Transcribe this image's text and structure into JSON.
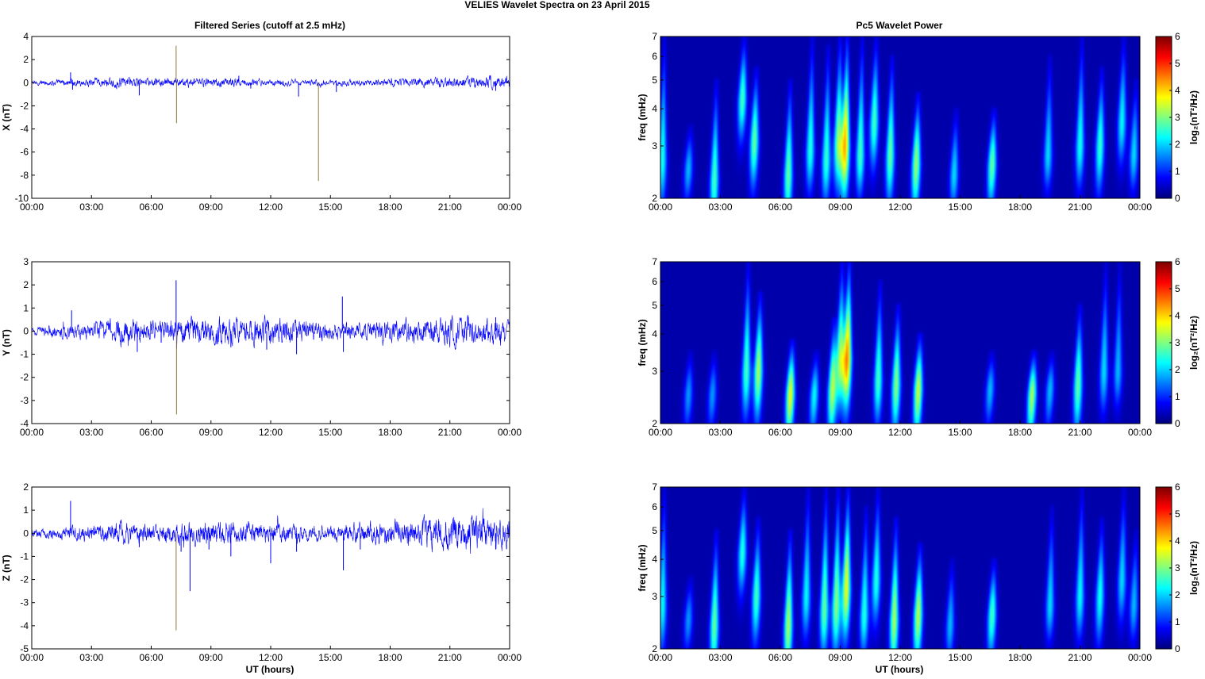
{
  "figure": {
    "title": "VELIES Wavelet Spectra on 23 April     2015",
    "left_column_title": "Filtered Series (cutoff at 2.5 mHz)",
    "right_column_title": "Pc5 Wavelet Power",
    "xlabel": "UT (hours)"
  },
  "chart_data": [
    {
      "type": "line",
      "id": "x",
      "ylabel": "X (nT)",
      "ylim": [
        -10,
        4
      ],
      "yticks": [
        -10,
        -8,
        -6,
        -4,
        -2,
        0,
        2,
        4
      ],
      "xlim_hours": [
        0,
        24
      ],
      "xticks": [
        "00:00",
        "03:00",
        "06:00",
        "09:00",
        "12:00",
        "15:00",
        "18:00",
        "21:00",
        "00:00"
      ],
      "line_color": "#0000ff",
      "noise_amplitude": [
        [
          0,
          0.1
        ],
        [
          1.5,
          0.15
        ],
        [
          3,
          0.2
        ],
        [
          4.5,
          0.25
        ],
        [
          6,
          0.2
        ],
        [
          7.5,
          0.2
        ],
        [
          9,
          0.25
        ],
        [
          10.5,
          0.2
        ],
        [
          12,
          0.15
        ],
        [
          13.5,
          0.15
        ],
        [
          15,
          0.15
        ],
        [
          17,
          0.15
        ],
        [
          19,
          0.2
        ],
        [
          21,
          0.25
        ],
        [
          24,
          0.3
        ]
      ],
      "spikes": [
        [
          1.95,
          0.9
        ],
        [
          2.05,
          -0.6
        ],
        [
          5.4,
          -1.1
        ],
        [
          7.25,
          3.2
        ],
        [
          7.27,
          -3.5
        ],
        [
          10.4,
          0.6
        ],
        [
          11.0,
          -0.5
        ],
        [
          13.4,
          -1.2
        ],
        [
          14.4,
          -8.5
        ],
        [
          15.3,
          -0.8
        ],
        [
          23.3,
          -0.7
        ]
      ]
    },
    {
      "type": "line",
      "id": "y",
      "ylabel": "Y (nT)",
      "ylim": [
        -4,
        3
      ],
      "yticks": [
        -4,
        -3,
        -2,
        -1,
        0,
        1,
        2,
        3
      ],
      "xlim_hours": [
        0,
        24
      ],
      "xticks": [
        "00:00",
        "03:00",
        "06:00",
        "09:00",
        "12:00",
        "15:00",
        "18:00",
        "21:00",
        "00:00"
      ],
      "line_color": "#0000ff",
      "noise_amplitude": [
        [
          0,
          0.1
        ],
        [
          1.5,
          0.15
        ],
        [
          3,
          0.2
        ],
        [
          4.5,
          0.3
        ],
        [
          6,
          0.25
        ],
        [
          7.5,
          0.3
        ],
        [
          9,
          0.35
        ],
        [
          10.5,
          0.3
        ],
        [
          12,
          0.3
        ],
        [
          13.5,
          0.3
        ],
        [
          15,
          0.2
        ],
        [
          17,
          0.2
        ],
        [
          19,
          0.3
        ],
        [
          21,
          0.35
        ],
        [
          24,
          0.3
        ]
      ],
      "spikes": [
        [
          2.0,
          0.9
        ],
        [
          5.3,
          -0.9
        ],
        [
          6.5,
          -0.5
        ],
        [
          7.25,
          2.2
        ],
        [
          7.27,
          -3.6
        ],
        [
          10.0,
          -0.7
        ],
        [
          11.8,
          -0.8
        ],
        [
          13.3,
          -1.0
        ],
        [
          15.6,
          1.5
        ],
        [
          15.65,
          -0.9
        ],
        [
          23.3,
          0.6
        ]
      ]
    },
    {
      "type": "line",
      "id": "z",
      "ylabel": "Z (nT)",
      "ylim": [
        -5,
        2
      ],
      "yticks": [
        -5,
        -4,
        -3,
        -2,
        -1,
        0,
        1,
        2
      ],
      "xlim_hours": [
        0,
        24
      ],
      "xticks": [
        "00:00",
        "03:00",
        "06:00",
        "09:00",
        "12:00",
        "15:00",
        "18:00",
        "21:00",
        "00:00"
      ],
      "line_color": "#0000ff",
      "noise_amplitude": [
        [
          0,
          0.1
        ],
        [
          1.5,
          0.15
        ],
        [
          3,
          0.2
        ],
        [
          4.5,
          0.25
        ],
        [
          6,
          0.2
        ],
        [
          7.5,
          0.25
        ],
        [
          9,
          0.3
        ],
        [
          10.5,
          0.25
        ],
        [
          12,
          0.25
        ],
        [
          13.5,
          0.2
        ],
        [
          15,
          0.2
        ],
        [
          17,
          0.25
        ],
        [
          19,
          0.3
        ],
        [
          20.5,
          0.4
        ],
        [
          22,
          0.4
        ],
        [
          24,
          0.35
        ]
      ],
      "spikes": [
        [
          1.95,
          1.4
        ],
        [
          5.4,
          -0.6
        ],
        [
          7.25,
          -4.2
        ],
        [
          7.5,
          -0.8
        ],
        [
          7.95,
          -2.5
        ],
        [
          8.9,
          -0.7
        ],
        [
          10.0,
          -1.0
        ],
        [
          12.0,
          -1.3
        ],
        [
          13.3,
          -0.8
        ],
        [
          15.65,
          -1.6
        ],
        [
          16.5,
          -0.7
        ],
        [
          23.3,
          -0.7
        ]
      ]
    },
    {
      "type": "heatmap",
      "id": "x-power",
      "ylabel": "freq (mHz)",
      "yscale": "log",
      "ylim": [
        2,
        7
      ],
      "yticks": [
        2,
        3,
        4,
        5,
        6,
        7
      ],
      "xlim_hours": [
        0,
        24
      ],
      "xticks": [
        "00:00",
        "03:00",
        "06:00",
        "09:00",
        "12:00",
        "15:00",
        "18:00",
        "21:00",
        "00:00"
      ],
      "colorbar_label": "log₂(nT²/Hz)",
      "clim": [
        0,
        6
      ],
      "colorbar_ticks": [
        0,
        1,
        2,
        3,
        4,
        5,
        6
      ],
      "colormap": "jet",
      "blobs": [
        [
          0.1,
          2.7,
          1.2,
          7,
          2.1
        ],
        [
          1.4,
          2.5,
          0.7,
          3.5,
          1.6
        ],
        [
          2.7,
          2.3,
          1.4,
          5,
          2.4
        ],
        [
          4.1,
          4.3,
          1.0,
          7,
          2.4
        ],
        [
          4.7,
          3.1,
          1.2,
          5.5,
          2.6
        ],
        [
          6.4,
          2.4,
          1.3,
          5,
          2.6
        ],
        [
          7.5,
          2.9,
          1.0,
          7,
          2.2
        ],
        [
          8.3,
          2.7,
          1.1,
          6.5,
          2.3
        ],
        [
          8.9,
          3.1,
          1.2,
          7,
          2.8
        ],
        [
          9.25,
          3.0,
          1.5,
          7,
          3.8
        ],
        [
          10.0,
          2.8,
          1.0,
          7,
          2.4
        ],
        [
          10.7,
          3.6,
          1.2,
          7,
          2.4
        ],
        [
          11.5,
          2.8,
          1.3,
          6,
          2.6
        ],
        [
          12.8,
          2.6,
          1.3,
          4.5,
          2.9
        ],
        [
          14.7,
          2.4,
          0.8,
          4,
          1.8
        ],
        [
          16.6,
          2.6,
          1.1,
          4,
          2.6
        ],
        [
          19.4,
          2.8,
          0.8,
          6,
          1.8
        ],
        [
          21.0,
          3.0,
          1.0,
          7,
          2.1
        ],
        [
          22.0,
          3.0,
          1.2,
          5.5,
          2.3
        ],
        [
          23.1,
          3.6,
          1.0,
          7,
          2.0
        ],
        [
          23.7,
          2.8,
          0.8,
          5,
          1.8
        ]
      ]
    },
    {
      "type": "heatmap",
      "id": "y-power",
      "ylabel": "freq (mHz)",
      "yscale": "log",
      "ylim": [
        2,
        7
      ],
      "yticks": [
        2,
        3,
        4,
        5,
        6,
        7
      ],
      "xlim_hours": [
        0,
        24
      ],
      "xticks": [
        "00:00",
        "03:00",
        "06:00",
        "09:00",
        "12:00",
        "15:00",
        "18:00",
        "21:00",
        "00:00"
      ],
      "colorbar_label": "log₂(nT²/Hz)",
      "clim": [
        0,
        6
      ],
      "colorbar_ticks": [
        0,
        1,
        2,
        3,
        4,
        5,
        6
      ],
      "colormap": "jet",
      "blobs": [
        [
          1.4,
          2.5,
          0.8,
          3.5,
          1.4
        ],
        [
          2.6,
          2.5,
          0.8,
          3.5,
          1.4
        ],
        [
          4.3,
          3.0,
          1.2,
          7,
          2.4
        ],
        [
          4.9,
          3.0,
          1.3,
          5.5,
          3.0
        ],
        [
          6.5,
          2.5,
          1.2,
          3.8,
          3.4
        ],
        [
          7.7,
          2.5,
          1.0,
          3.5,
          2.0
        ],
        [
          8.6,
          2.6,
          1.3,
          4.5,
          3.0
        ],
        [
          9.0,
          3.3,
          1.2,
          7,
          2.9
        ],
        [
          9.35,
          3.3,
          1.4,
          7,
          4.0
        ],
        [
          10.9,
          2.8,
          1.1,
          6,
          2.4
        ],
        [
          11.8,
          2.7,
          1.3,
          5,
          2.8
        ],
        [
          12.9,
          2.6,
          1.3,
          4,
          3.2
        ],
        [
          16.5,
          2.6,
          0.8,
          3.5,
          1.6
        ],
        [
          18.6,
          2.5,
          1.2,
          3.5,
          3.0
        ],
        [
          19.5,
          2.6,
          0.9,
          3.5,
          1.6
        ],
        [
          20.9,
          2.7,
          1.3,
          5,
          2.6
        ],
        [
          22.2,
          3.0,
          1.0,
          7,
          1.8
        ],
        [
          22.9,
          3.0,
          0.8,
          7,
          1.6
        ]
      ]
    },
    {
      "type": "heatmap",
      "id": "z-power",
      "ylabel": "freq (mHz)",
      "yscale": "log",
      "ylim": [
        2,
        7
      ],
      "yticks": [
        2,
        3,
        4,
        5,
        6,
        7
      ],
      "xlim_hours": [
        0,
        24
      ],
      "xticks": [
        "00:00",
        "03:00",
        "06:00",
        "09:00",
        "12:00",
        "15:00",
        "18:00",
        "21:00",
        "00:00"
      ],
      "colorbar_label": "log₂(nT²/Hz)",
      "clim": [
        0,
        6
      ],
      "colorbar_ticks": [
        0,
        1,
        2,
        3,
        4,
        5,
        6
      ],
      "colormap": "jet",
      "blobs": [
        [
          0.1,
          2.8,
          1.2,
          7,
          2.0
        ],
        [
          1.4,
          2.5,
          0.7,
          3.5,
          1.4
        ],
        [
          2.7,
          2.4,
          1.4,
          5,
          2.6
        ],
        [
          4.1,
          4.2,
          1.0,
          7,
          2.2
        ],
        [
          4.8,
          3.0,
          1.2,
          5.5,
          2.4
        ],
        [
          6.4,
          2.4,
          1.4,
          5,
          3.0
        ],
        [
          7.3,
          3.0,
          1.0,
          7,
          2.0
        ],
        [
          8.2,
          2.7,
          1.2,
          7,
          2.6
        ],
        [
          8.8,
          2.8,
          1.3,
          7,
          2.8
        ],
        [
          9.3,
          3.2,
          1.4,
          7,
          3.4
        ],
        [
          10.2,
          2.6,
          1.0,
          6,
          2.2
        ],
        [
          10.8,
          3.4,
          1.1,
          7,
          2.2
        ],
        [
          11.7,
          2.5,
          1.4,
          5.5,
          3.0
        ],
        [
          12.9,
          2.6,
          1.3,
          4.5,
          3.1
        ],
        [
          14.5,
          2.4,
          0.8,
          4,
          1.6
        ],
        [
          16.6,
          2.6,
          1.1,
          4,
          2.4
        ],
        [
          19.5,
          2.8,
          0.8,
          6,
          1.8
        ],
        [
          21.0,
          3.0,
          1.0,
          7,
          2.0
        ],
        [
          22.0,
          3.0,
          1.2,
          5.5,
          2.1
        ],
        [
          23.1,
          3.4,
          1.0,
          7,
          1.8
        ],
        [
          23.7,
          2.8,
          0.8,
          5,
          1.6
        ]
      ]
    }
  ]
}
